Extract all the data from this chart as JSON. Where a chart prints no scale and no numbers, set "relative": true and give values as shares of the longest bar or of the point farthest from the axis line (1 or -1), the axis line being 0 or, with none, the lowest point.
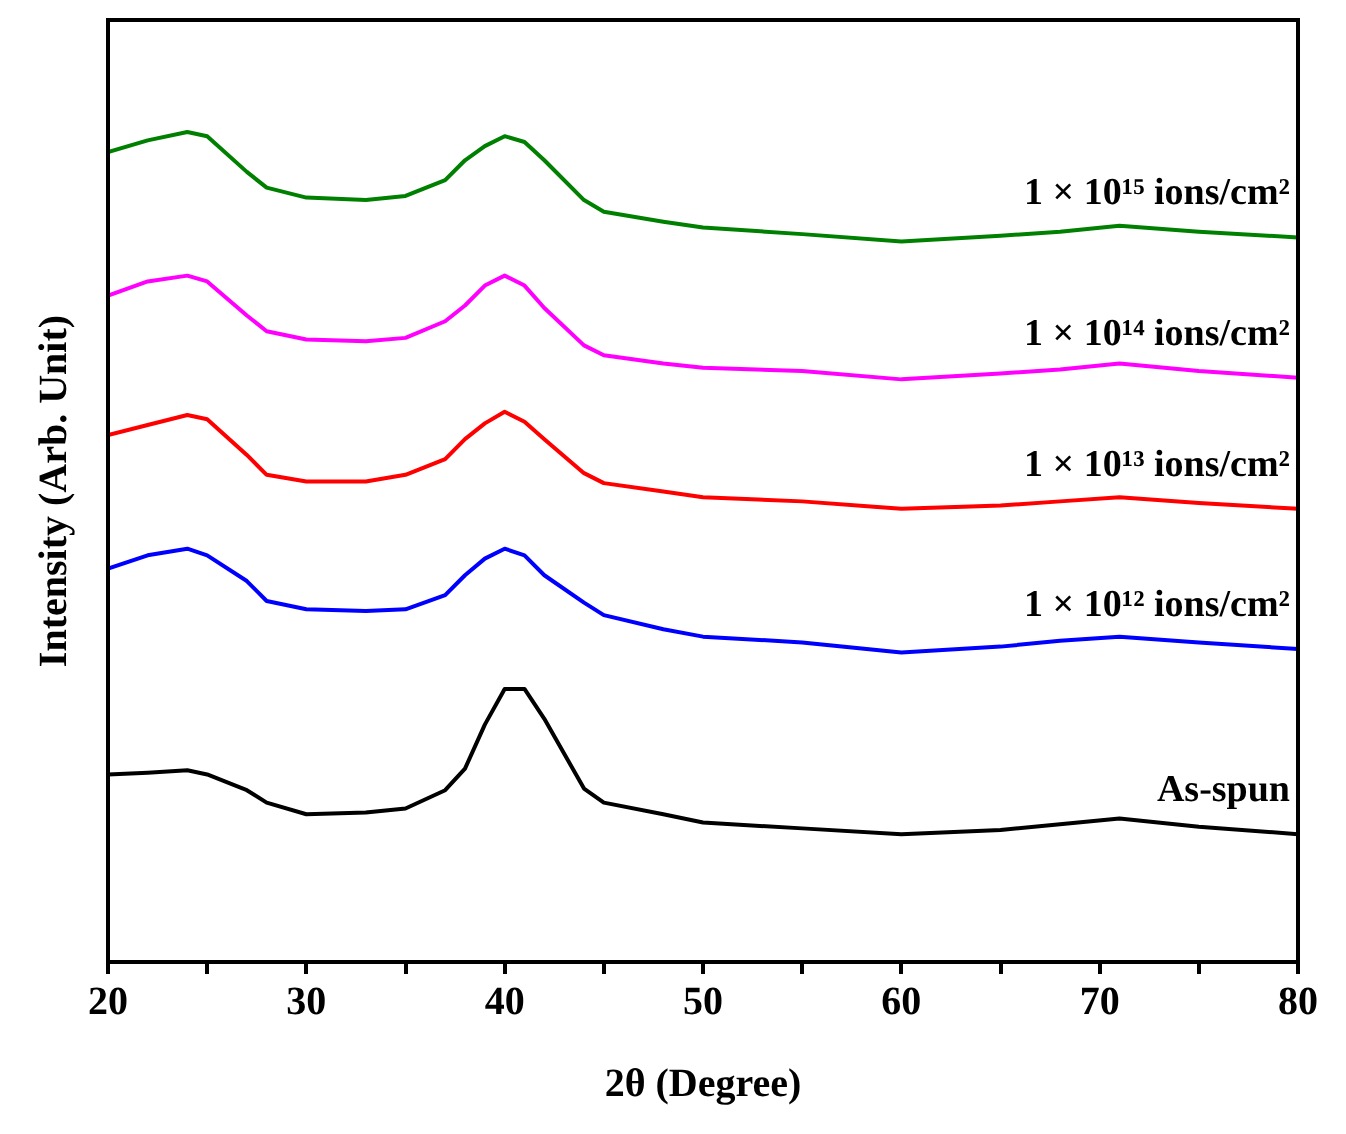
{
  "chart_data": {
    "type": "line",
    "relative": true,
    "xlabel": "2θ (Degree)",
    "ylabel": "Intensity (Arb. Unit)",
    "x": [
      20,
      22,
      24,
      25,
      27,
      28,
      30,
      33,
      35,
      37,
      38,
      39,
      40,
      41,
      42,
      44,
      45,
      48,
      50,
      55,
      60,
      65,
      68,
      71,
      75,
      80
    ],
    "xlim": [
      20,
      80
    ],
    "xticks": [
      20,
      {
        "value": 25,
        "label": null
      },
      30,
      {
        "value": 35,
        "label": null
      },
      40,
      {
        "value": 45,
        "label": null
      },
      50,
      {
        "value": 55,
        "label": null
      },
      60,
      {
        "value": 65,
        "label": null
      },
      70,
      {
        "value": 75,
        "label": null
      },
      80
    ],
    "grid": false,
    "legend": false,
    "series": [
      {
        "name": "As-spun",
        "color": "#000000",
        "values": [
          0.226,
          0.228,
          0.231,
          0.226,
          0.207,
          0.192,
          0.178,
          0.18,
          0.185,
          0.207,
          0.233,
          0.286,
          0.329,
          0.329,
          0.293,
          0.209,
          0.192,
          0.178,
          0.168,
          0.161,
          0.154,
          0.159,
          0.166,
          0.173,
          0.163,
          0.154
        ]
      },
      {
        "name": "1 × 10¹² ions/cm²",
        "color": "#0000ff",
        "values": [
          0.474,
          0.49,
          0.498,
          0.49,
          0.459,
          0.435,
          0.425,
          0.423,
          0.425,
          0.442,
          0.466,
          0.486,
          0.498,
          0.49,
          0.466,
          0.433,
          0.418,
          0.401,
          0.392,
          0.385,
          0.373,
          0.38,
          0.387,
          0.392,
          0.385,
          0.377
        ]
      },
      {
        "name": "1 × 10¹³ ions/cm²",
        "color": "#ff0000",
        "values": [
          0.635,
          0.647,
          0.659,
          0.654,
          0.611,
          0.587,
          0.579,
          0.579,
          0.587,
          0.606,
          0.63,
          0.649,
          0.663,
          0.651,
          0.63,
          0.589,
          0.577,
          0.567,
          0.56,
          0.555,
          0.546,
          0.55,
          0.555,
          0.56,
          0.553,
          0.546
        ]
      },
      {
        "name": "1 × 10¹⁴ ions/cm²",
        "color": "#ff00ff",
        "values": [
          0.803,
          0.82,
          0.827,
          0.82,
          0.779,
          0.76,
          0.75,
          0.748,
          0.752,
          0.772,
          0.791,
          0.815,
          0.827,
          0.815,
          0.788,
          0.743,
          0.731,
          0.721,
          0.716,
          0.712,
          0.702,
          0.709,
          0.714,
          0.721,
          0.712,
          0.704
        ]
      },
      {
        "name": "1 × 10¹⁵ ions/cm²",
        "color": "#008000",
        "values": [
          0.976,
          0.99,
          1,
          0.995,
          0.952,
          0.933,
          0.921,
          0.918,
          0.923,
          0.942,
          0.966,
          0.983,
          0.995,
          0.988,
          0.966,
          0.918,
          0.904,
          0.892,
          0.885,
          0.877,
          0.868,
          0.875,
          0.88,
          0.887,
          0.88,
          0.873
        ]
      }
    ]
  }
}
